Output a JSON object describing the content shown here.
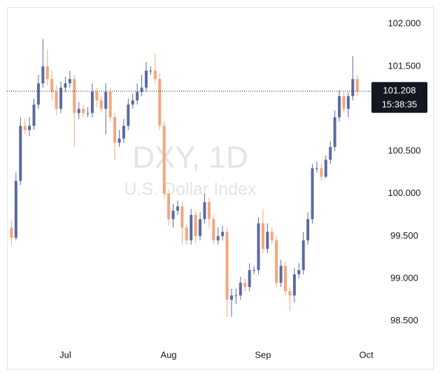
{
  "chart_data": {
    "type": "candlestick",
    "title": "DXY, 1D",
    "subtitle": "U.S. Dollar Index",
    "up_color": "#5b69a3",
    "down_color": "#f5a57a",
    "open": [
      99.6,
      99.48,
      100.15,
      100.8,
      100.75,
      100.8,
      101.05,
      101.3,
      101.5,
      101.35,
      101.2,
      101.0,
      101.25,
      101.3,
      101.35,
      100.95,
      101.0,
      100.95,
      100.95,
      101.2,
      101.1,
      101.0,
      101.2,
      100.9,
      100.6,
      100.65,
      100.8,
      101.05,
      101.1,
      101.2,
      101.25,
      101.45,
      101.45,
      101.35,
      100.8,
      100.0,
      99.7,
      99.8,
      99.85,
      99.6,
      99.45,
      99.75,
      99.5,
      99.7,
      99.9,
      99.7,
      99.45,
      99.5,
      99.55,
      98.75,
      98.8,
      98.8,
      98.95,
      98.9,
      99.1,
      99.1,
      99.65,
      99.35,
      99.55,
      99.45,
      98.95,
      99.15,
      98.85,
      98.8,
      99.05,
      99.1,
      99.45,
      99.7,
      100.3,
      100.3,
      100.2,
      100.4,
      100.55,
      100.9,
      101.15,
      101.0,
      101.15,
      101.35
    ],
    "high": [
      99.68,
      100.25,
      100.9,
      100.88,
      100.9,
      101.12,
      101.4,
      101.82,
      101.7,
      101.45,
      101.28,
      101.32,
      101.38,
      101.45,
      101.4,
      101.08,
      101.05,
      101.02,
      101.3,
      101.25,
      101.15,
      101.3,
      101.25,
      100.95,
      100.75,
      100.88,
      101.12,
      101.18,
      101.3,
      101.4,
      101.55,
      101.5,
      101.65,
      101.42,
      100.85,
      100.05,
      99.88,
      99.92,
      99.9,
      99.65,
      99.82,
      99.8,
      99.78,
      100.0,
      99.95,
      99.75,
      99.6,
      99.62,
      99.6,
      98.88,
      98.88,
      99.02,
      99.0,
      99.18,
      99.15,
      99.72,
      99.82,
      99.65,
      99.6,
      99.5,
      99.22,
      99.2,
      98.9,
      99.12,
      99.18,
      99.55,
      99.78,
      100.35,
      100.38,
      100.35,
      100.45,
      100.62,
      100.98,
      101.22,
      101.2,
      101.2,
      101.62,
      101.4
    ],
    "low": [
      99.4,
      99.45,
      100.1,
      100.7,
      100.68,
      100.75,
      101.0,
      101.25,
      101.28,
      101.1,
      100.92,
      100.95,
      101.2,
      101.25,
      100.55,
      100.88,
      100.9,
      100.9,
      100.9,
      101.02,
      100.95,
      100.7,
      100.85,
      100.4,
      100.55,
      100.6,
      100.75,
      101.0,
      101.05,
      101.15,
      101.2,
      101.4,
      101.3,
      100.75,
      99.95,
      99.62,
      99.6,
      99.75,
      99.4,
      99.4,
      99.4,
      99.42,
      99.45,
      99.65,
      99.6,
      99.4,
      99.4,
      99.45,
      98.55,
      98.55,
      98.7,
      98.75,
      98.85,
      98.85,
      99.05,
      99.05,
      99.3,
      99.3,
      99.4,
      98.9,
      98.9,
      98.8,
      98.62,
      98.72,
      99.0,
      99.05,
      99.4,
      99.65,
      100.25,
      100.15,
      100.18,
      100.35,
      100.5,
      100.85,
      100.95,
      100.9,
      101.1,
      101.15
    ],
    "close": [
      99.48,
      100.15,
      100.8,
      100.75,
      100.8,
      101.05,
      101.3,
      101.5,
      101.35,
      101.2,
      101.0,
      101.25,
      101.3,
      101.35,
      100.95,
      101.0,
      100.95,
      100.95,
      101.2,
      101.1,
      101.0,
      101.2,
      100.9,
      100.6,
      100.65,
      100.8,
      101.05,
      101.1,
      101.2,
      101.25,
      101.45,
      101.45,
      101.35,
      100.8,
      100.0,
      99.7,
      99.8,
      99.85,
      99.6,
      99.45,
      99.75,
      99.5,
      99.7,
      99.9,
      99.7,
      99.45,
      99.5,
      99.55,
      98.75,
      98.8,
      98.8,
      98.95,
      98.9,
      99.1,
      99.1,
      99.65,
      99.35,
      99.55,
      99.45,
      98.95,
      99.15,
      98.85,
      98.8,
      99.05,
      99.1,
      99.45,
      99.7,
      100.3,
      100.3,
      100.2,
      100.4,
      100.55,
      100.9,
      101.15,
      101.0,
      101.15,
      101.35,
      101.208
    ],
    "last_price": {
      "value": 101.208,
      "label": "101.208"
    },
    "countdown": "15:38:35",
    "xlim": [
      -1,
      80
    ],
    "xticks": [
      {
        "value": 12,
        "label": "Jul"
      },
      {
        "value": 35,
        "label": "Aug"
      },
      {
        "value": 56,
        "label": "Sep"
      },
      {
        "value": 79,
        "label": "Oct"
      }
    ],
    "ylim": [
      98.2,
      102.2
    ],
    "yticks": [
      {
        "value": 98.5,
        "label": "98.500"
      },
      {
        "value": 99,
        "label": "99.000"
      },
      {
        "value": 99.5,
        "label": "99.500"
      },
      {
        "value": 100,
        "label": "100.000"
      },
      {
        "value": 100.5,
        "label": "100.500"
      },
      {
        "value": 101.5,
        "label": "101.500"
      },
      {
        "value": 102,
        "label": "102.000"
      }
    ],
    "grid": false
  }
}
